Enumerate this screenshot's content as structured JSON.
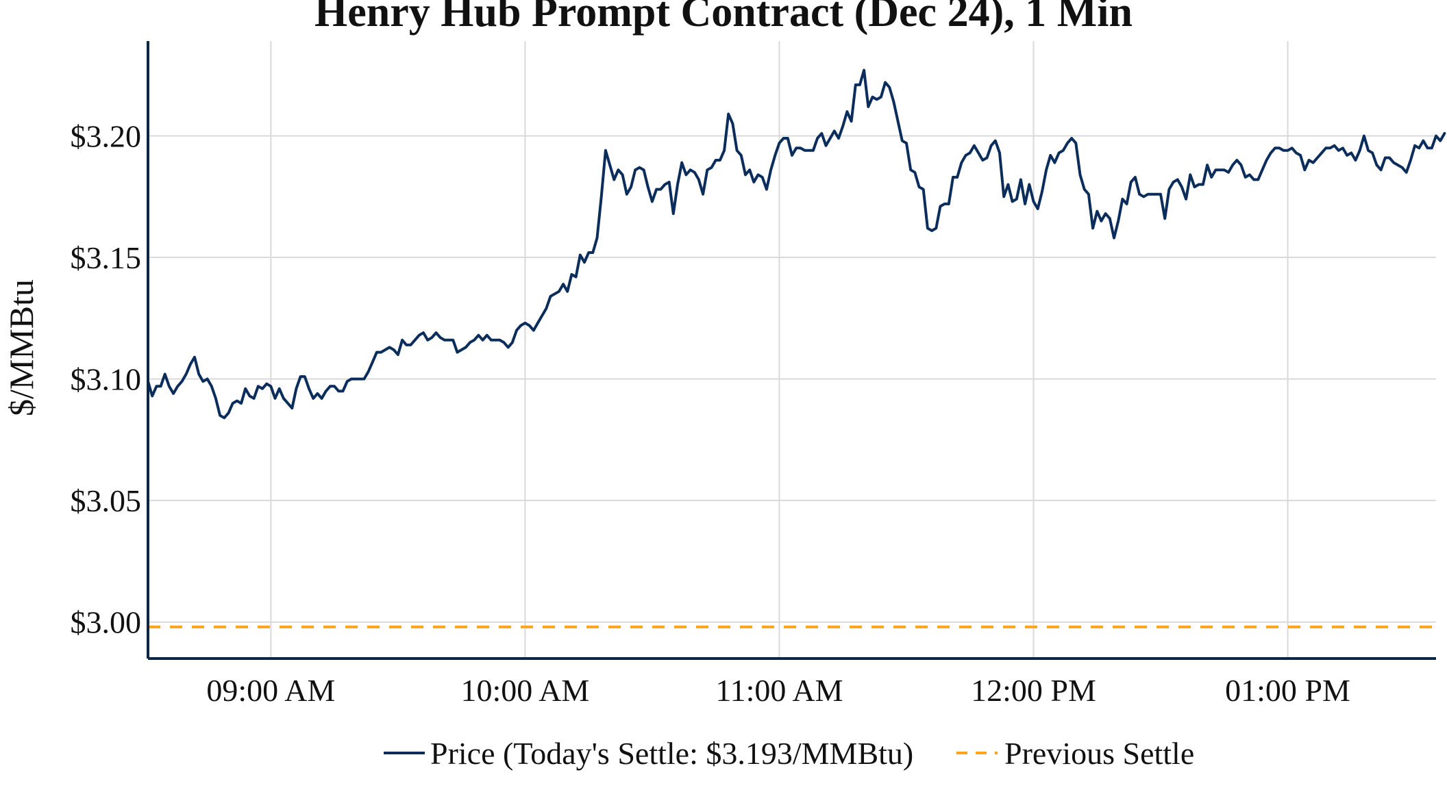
{
  "chart_data": {
    "type": "line",
    "title": "Henry Hub Prompt Contract (Dec 24), 1 Min",
    "xlabel": "",
    "ylabel": "$/MMBtu",
    "x_ticks": [
      "09:00 AM",
      "10:00 AM",
      "11:00 AM",
      "12:00 PM",
      "01:00 PM"
    ],
    "x_tick_minutes": [
      540,
      600,
      660,
      720,
      780
    ],
    "xlim_minutes": [
      511,
      815
    ],
    "y_ticks": [
      "$3.00",
      "$3.05",
      "$3.10",
      "$3.15",
      "$3.20"
    ],
    "y_tick_values": [
      3.0,
      3.05,
      3.1,
      3.15,
      3.2
    ],
    "ylim": [
      2.985,
      3.239
    ],
    "grid": true,
    "legend_position": "bottom",
    "series": [
      {
        "name": "Price (Today's Settle: $3.193/MMBtu)",
        "color": "#0b2d5b",
        "style": "solid",
        "points": [
          [
            511,
            3.099
          ],
          [
            512,
            3.093
          ],
          [
            513,
            3.097
          ],
          [
            514,
            3.097
          ],
          [
            515,
            3.102
          ],
          [
            516,
            3.097
          ],
          [
            517,
            3.094
          ],
          [
            518,
            3.097
          ],
          [
            519,
            3.099
          ],
          [
            520,
            3.102
          ],
          [
            521,
            3.106
          ],
          [
            522,
            3.109
          ],
          [
            523,
            3.102
          ],
          [
            524,
            3.099
          ],
          [
            525,
            3.1
          ],
          [
            526,
            3.097
          ],
          [
            527,
            3.092
          ],
          [
            528,
            3.085
          ],
          [
            529,
            3.084
          ],
          [
            530,
            3.086
          ],
          [
            531,
            3.09
          ],
          [
            532,
            3.091
          ],
          [
            533,
            3.09
          ],
          [
            534,
            3.096
          ],
          [
            535,
            3.093
          ],
          [
            536,
            3.092
          ],
          [
            537,
            3.097
          ],
          [
            538,
            3.096
          ],
          [
            539,
            3.098
          ],
          [
            540,
            3.097
          ],
          [
            541,
            3.092
          ],
          [
            542,
            3.096
          ],
          [
            543,
            3.092
          ],
          [
            544,
            3.09
          ],
          [
            545,
            3.088
          ],
          [
            546,
            3.096
          ],
          [
            547,
            3.101
          ],
          [
            548,
            3.101
          ],
          [
            549,
            3.096
          ],
          [
            550,
            3.092
          ],
          [
            551,
            3.094
          ],
          [
            552,
            3.092
          ],
          [
            553,
            3.095
          ],
          [
            554,
            3.097
          ],
          [
            555,
            3.097
          ],
          [
            556,
            3.095
          ],
          [
            557,
            3.095
          ],
          [
            558,
            3.099
          ],
          [
            559,
            3.1
          ],
          [
            560,
            3.1
          ],
          [
            561,
            3.1
          ],
          [
            562,
            3.1
          ],
          [
            563,
            3.103
          ],
          [
            564,
            3.107
          ],
          [
            565,
            3.111
          ],
          [
            566,
            3.111
          ],
          [
            567,
            3.112
          ],
          [
            568,
            3.113
          ],
          [
            569,
            3.112
          ],
          [
            570,
            3.11
          ],
          [
            571,
            3.116
          ],
          [
            572,
            3.114
          ],
          [
            573,
            3.114
          ],
          [
            574,
            3.116
          ],
          [
            575,
            3.118
          ],
          [
            576,
            3.119
          ],
          [
            577,
            3.116
          ],
          [
            578,
            3.117
          ],
          [
            579,
            3.119
          ],
          [
            580,
            3.117
          ],
          [
            581,
            3.116
          ],
          [
            582,
            3.116
          ],
          [
            583,
            3.116
          ],
          [
            584,
            3.111
          ],
          [
            585,
            3.112
          ],
          [
            586,
            3.113
          ],
          [
            587,
            3.115
          ],
          [
            588,
            3.116
          ],
          [
            589,
            3.118
          ],
          [
            590,
            3.116
          ],
          [
            591,
            3.118
          ],
          [
            592,
            3.116
          ],
          [
            593,
            3.116
          ],
          [
            594,
            3.116
          ],
          [
            595,
            3.115
          ],
          [
            596,
            3.113
          ],
          [
            597,
            3.115
          ],
          [
            598,
            3.12
          ],
          [
            599,
            3.122
          ],
          [
            600,
            3.123
          ],
          [
            601,
            3.122
          ],
          [
            602,
            3.12
          ],
          [
            603,
            3.123
          ],
          [
            604,
            3.126
          ],
          [
            605,
            3.129
          ],
          [
            606,
            3.134
          ],
          [
            607,
            3.135
          ],
          [
            608,
            3.136
          ],
          [
            609,
            3.139
          ],
          [
            610,
            3.136
          ],
          [
            611,
            3.143
          ],
          [
            612,
            3.142
          ],
          [
            613,
            3.151
          ],
          [
            614,
            3.148
          ],
          [
            615,
            3.152
          ],
          [
            616,
            3.152
          ],
          [
            617,
            3.158
          ],
          [
            618,
            3.175
          ],
          [
            619,
            3.194
          ],
          [
            620,
            3.188
          ],
          [
            621,
            3.182
          ],
          [
            622,
            3.186
          ],
          [
            623,
            3.184
          ],
          [
            624,
            3.176
          ],
          [
            625,
            3.179
          ],
          [
            626,
            3.186
          ],
          [
            627,
            3.187
          ],
          [
            628,
            3.186
          ],
          [
            629,
            3.179
          ],
          [
            630,
            3.173
          ],
          [
            631,
            3.178
          ],
          [
            632,
            3.178
          ],
          [
            633,
            3.18
          ],
          [
            634,
            3.181
          ],
          [
            635,
            3.168
          ],
          [
            636,
            3.18
          ],
          [
            637,
            3.189
          ],
          [
            638,
            3.184
          ],
          [
            639,
            3.186
          ],
          [
            640,
            3.185
          ],
          [
            641,
            3.182
          ],
          [
            642,
            3.176
          ],
          [
            643,
            3.186
          ],
          [
            644,
            3.187
          ],
          [
            645,
            3.19
          ],
          [
            646,
            3.19
          ],
          [
            647,
            3.194
          ],
          [
            648,
            3.209
          ],
          [
            649,
            3.205
          ],
          [
            650,
            3.194
          ],
          [
            651,
            3.192
          ],
          [
            652,
            3.184
          ],
          [
            653,
            3.186
          ],
          [
            654,
            3.181
          ],
          [
            655,
            3.184
          ],
          [
            656,
            3.183
          ],
          [
            657,
            3.178
          ],
          [
            658,
            3.186
          ],
          [
            659,
            3.192
          ],
          [
            660,
            3.197
          ],
          [
            661,
            3.199
          ],
          [
            662,
            3.199
          ],
          [
            663,
            3.192
          ],
          [
            664,
            3.195
          ],
          [
            665,
            3.195
          ],
          [
            666,
            3.194
          ],
          [
            667,
            3.194
          ],
          [
            668,
            3.194
          ],
          [
            669,
            3.199
          ],
          [
            670,
            3.201
          ],
          [
            671,
            3.196
          ],
          [
            672,
            3.199
          ],
          [
            673,
            3.202
          ],
          [
            674,
            3.199
          ],
          [
            675,
            3.204
          ],
          [
            676,
            3.21
          ],
          [
            677,
            3.206
          ],
          [
            678,
            3.221
          ],
          [
            679,
            3.221
          ],
          [
            680,
            3.227
          ],
          [
            681,
            3.212
          ],
          [
            682,
            3.216
          ],
          [
            683,
            3.215
          ],
          [
            684,
            3.216
          ],
          [
            685,
            3.222
          ],
          [
            686,
            3.22
          ],
          [
            687,
            3.214
          ],
          [
            688,
            3.206
          ],
          [
            689,
            3.198
          ],
          [
            690,
            3.197
          ],
          [
            691,
            3.186
          ],
          [
            692,
            3.185
          ],
          [
            693,
            3.179
          ],
          [
            694,
            3.178
          ],
          [
            695,
            3.162
          ],
          [
            696,
            3.161
          ],
          [
            697,
            3.162
          ],
          [
            698,
            3.171
          ],
          [
            699,
            3.172
          ],
          [
            700,
            3.172
          ],
          [
            701,
            3.183
          ],
          [
            702,
            3.183
          ],
          [
            703,
            3.189
          ],
          [
            704,
            3.192
          ],
          [
            705,
            3.193
          ],
          [
            706,
            3.196
          ],
          [
            707,
            3.193
          ],
          [
            708,
            3.19
          ],
          [
            709,
            3.191
          ],
          [
            710,
            3.196
          ],
          [
            711,
            3.198
          ],
          [
            712,
            3.193
          ],
          [
            713,
            3.175
          ],
          [
            714,
            3.18
          ],
          [
            715,
            3.173
          ],
          [
            716,
            3.174
          ],
          [
            717,
            3.182
          ],
          [
            718,
            3.172
          ],
          [
            719,
            3.18
          ],
          [
            720,
            3.173
          ],
          [
            721,
            3.17
          ],
          [
            722,
            3.177
          ],
          [
            723,
            3.186
          ],
          [
            724,
            3.192
          ],
          [
            725,
            3.189
          ],
          [
            726,
            3.193
          ],
          [
            727,
            3.194
          ],
          [
            728,
            3.197
          ],
          [
            729,
            3.199
          ],
          [
            730,
            3.197
          ],
          [
            731,
            3.184
          ],
          [
            732,
            3.178
          ],
          [
            733,
            3.176
          ],
          [
            734,
            3.162
          ],
          [
            735,
            3.169
          ],
          [
            736,
            3.165
          ],
          [
            737,
            3.168
          ],
          [
            738,
            3.166
          ],
          [
            739,
            3.158
          ],
          [
            740,
            3.165
          ],
          [
            741,
            3.174
          ],
          [
            742,
            3.172
          ],
          [
            743,
            3.181
          ],
          [
            744,
            3.183
          ],
          [
            745,
            3.176
          ],
          [
            746,
            3.175
          ],
          [
            747,
            3.176
          ],
          [
            748,
            3.176
          ],
          [
            749,
            3.176
          ],
          [
            750,
            3.176
          ],
          [
            751,
            3.166
          ],
          [
            752,
            3.178
          ],
          [
            753,
            3.181
          ],
          [
            754,
            3.182
          ],
          [
            755,
            3.179
          ],
          [
            756,
            3.174
          ],
          [
            757,
            3.184
          ],
          [
            758,
            3.179
          ],
          [
            759,
            3.18
          ],
          [
            760,
            3.18
          ],
          [
            761,
            3.188
          ],
          [
            762,
            3.183
          ],
          [
            763,
            3.186
          ],
          [
            764,
            3.186
          ],
          [
            765,
            3.186
          ],
          [
            766,
            3.185
          ],
          [
            767,
            3.188
          ],
          [
            768,
            3.19
          ],
          [
            769,
            3.188
          ],
          [
            770,
            3.183
          ],
          [
            771,
            3.184
          ],
          [
            772,
            3.182
          ],
          [
            773,
            3.182
          ],
          [
            774,
            3.186
          ],
          [
            775,
            3.19
          ],
          [
            776,
            3.193
          ],
          [
            777,
            3.195
          ],
          [
            778,
            3.195
          ],
          [
            779,
            3.194
          ],
          [
            780,
            3.194
          ],
          [
            781,
            3.195
          ],
          [
            782,
            3.193
          ],
          [
            783,
            3.192
          ],
          [
            784,
            3.186
          ],
          [
            785,
            3.19
          ],
          [
            786,
            3.189
          ],
          [
            787,
            3.191
          ],
          [
            788,
            3.193
          ],
          [
            789,
            3.195
          ],
          [
            790,
            3.195
          ],
          [
            791,
            3.196
          ],
          [
            792,
            3.194
          ],
          [
            793,
            3.195
          ],
          [
            794,
            3.192
          ],
          [
            795,
            3.193
          ],
          [
            796,
            3.19
          ],
          [
            797,
            3.194
          ],
          [
            798,
            3.2
          ],
          [
            799,
            3.194
          ],
          [
            800,
            3.193
          ],
          [
            801,
            3.188
          ],
          [
            802,
            3.186
          ],
          [
            803,
            3.191
          ],
          [
            804,
            3.191
          ],
          [
            805,
            3.189
          ],
          [
            806,
            3.188
          ],
          [
            807,
            3.187
          ],
          [
            808,
            3.185
          ],
          [
            809,
            3.19
          ],
          [
            810,
            3.196
          ],
          [
            811,
            3.195
          ],
          [
            812,
            3.198
          ],
          [
            813,
            3.195
          ],
          [
            814,
            3.195
          ],
          [
            815,
            3.2
          ],
          [
            816,
            3.198
          ],
          [
            817,
            3.201
          ]
        ]
      },
      {
        "name": "Previous Settle",
        "color": "#ffa31a",
        "style": "dashed",
        "value": 2.998
      }
    ]
  }
}
